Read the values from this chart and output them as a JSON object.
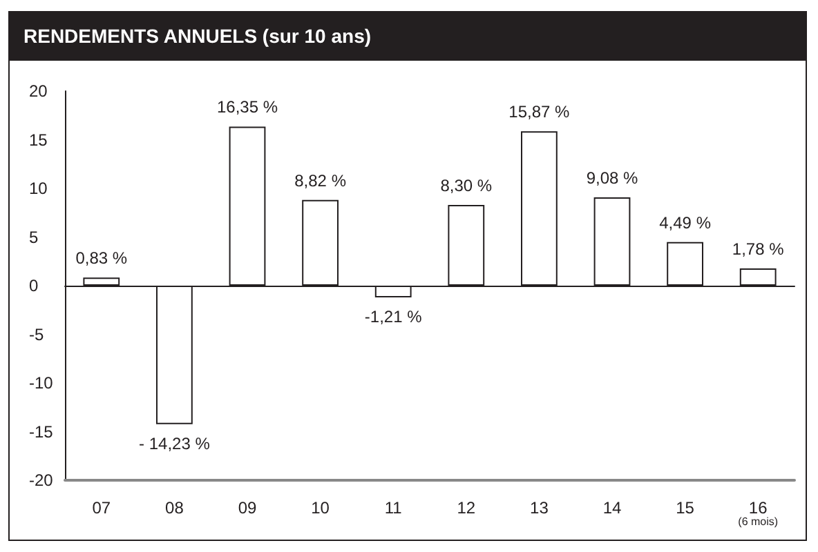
{
  "chart_data": {
    "type": "bar",
    "title": "RENDEMENTS ANNUELS (sur 10 ans)",
    "categories": [
      "07",
      "08",
      "09",
      "10",
      "11",
      "12",
      "13",
      "14",
      "15",
      "16\n(6 mois)"
    ],
    "values": [
      0.83,
      -14.23,
      16.35,
      8.82,
      -1.21,
      8.3,
      15.87,
      9.08,
      4.49,
      1.78
    ],
    "value_labels": [
      "0,83 %",
      "- 14,23 %",
      "16,35 %",
      "8,82 %",
      "-1,21 %",
      "8,30 %",
      "15,87 %",
      "9,08 %",
      "4,49 %",
      "1,78 %"
    ],
    "color": "#ffffff",
    "ylim": [
      -20,
      20
    ],
    "yticks": [
      -20,
      -15,
      -10,
      -5,
      0,
      5,
      10,
      15,
      20
    ]
  }
}
